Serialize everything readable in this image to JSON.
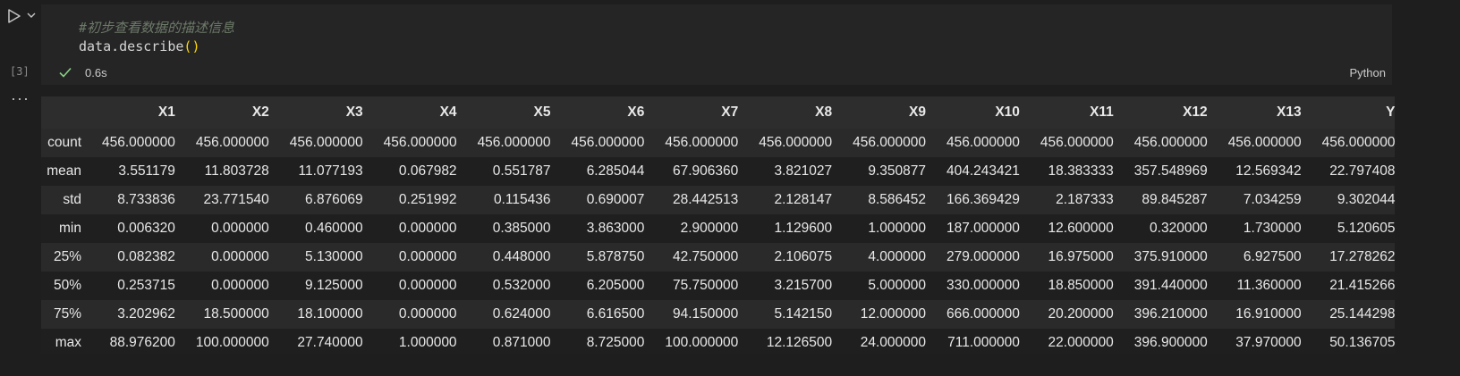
{
  "cell": {
    "execution_count": "[3]",
    "code_comment": "#初步查看数据的描述信息",
    "code_object": "data.describe",
    "code_open_paren": "(",
    "code_close_paren": ")",
    "duration": "0.6s",
    "language": "Python",
    "more_label": "···"
  },
  "colors": {
    "background": "#1e1e1e",
    "cell_background": "#252526",
    "success": "#89d185",
    "paren": "#ffd700"
  },
  "table": {
    "columns": [
      "X1",
      "X2",
      "X3",
      "X4",
      "X5",
      "X6",
      "X7",
      "X8",
      "X9",
      "X10",
      "X11",
      "X12",
      "X13",
      "Y"
    ],
    "rows": [
      {
        "label": "count",
        "values": [
          "456.000000",
          "456.000000",
          "456.000000",
          "456.000000",
          "456.000000",
          "456.000000",
          "456.000000",
          "456.000000",
          "456.000000",
          "456.000000",
          "456.000000",
          "456.000000",
          "456.000000",
          "456.000000"
        ]
      },
      {
        "label": "mean",
        "values": [
          "3.551179",
          "11.803728",
          "11.077193",
          "0.067982",
          "0.551787",
          "6.285044",
          "67.906360",
          "3.821027",
          "9.350877",
          "404.243421",
          "18.383333",
          "357.548969",
          "12.569342",
          "22.797408"
        ]
      },
      {
        "label": "std",
        "values": [
          "8.733836",
          "23.771540",
          "6.876069",
          "0.251992",
          "0.115436",
          "0.690007",
          "28.442513",
          "2.128147",
          "8.586452",
          "166.369429",
          "2.187333",
          "89.845287",
          "7.034259",
          "9.302044"
        ]
      },
      {
        "label": "min",
        "values": [
          "0.006320",
          "0.000000",
          "0.460000",
          "0.000000",
          "0.385000",
          "3.863000",
          "2.900000",
          "1.129600",
          "1.000000",
          "187.000000",
          "12.600000",
          "0.320000",
          "1.730000",
          "5.120605"
        ]
      },
      {
        "label": "25%",
        "values": [
          "0.082382",
          "0.000000",
          "5.130000",
          "0.000000",
          "0.448000",
          "5.878750",
          "42.750000",
          "2.106075",
          "4.000000",
          "279.000000",
          "16.975000",
          "375.910000",
          "6.927500",
          "17.278262"
        ]
      },
      {
        "label": "50%",
        "values": [
          "0.253715",
          "0.000000",
          "9.125000",
          "0.000000",
          "0.532000",
          "6.205000",
          "75.750000",
          "3.215700",
          "5.000000",
          "330.000000",
          "18.850000",
          "391.440000",
          "11.360000",
          "21.415266"
        ]
      },
      {
        "label": "75%",
        "values": [
          "3.202962",
          "18.500000",
          "18.100000",
          "0.000000",
          "0.624000",
          "6.616500",
          "94.150000",
          "5.142150",
          "12.000000",
          "666.000000",
          "20.200000",
          "396.210000",
          "16.910000",
          "25.144298"
        ]
      },
      {
        "label": "max",
        "values": [
          "88.976200",
          "100.000000",
          "27.740000",
          "1.000000",
          "0.871000",
          "8.725000",
          "100.000000",
          "12.126500",
          "24.000000",
          "711.000000",
          "22.000000",
          "396.900000",
          "37.970000",
          "50.136705"
        ]
      }
    ]
  }
}
